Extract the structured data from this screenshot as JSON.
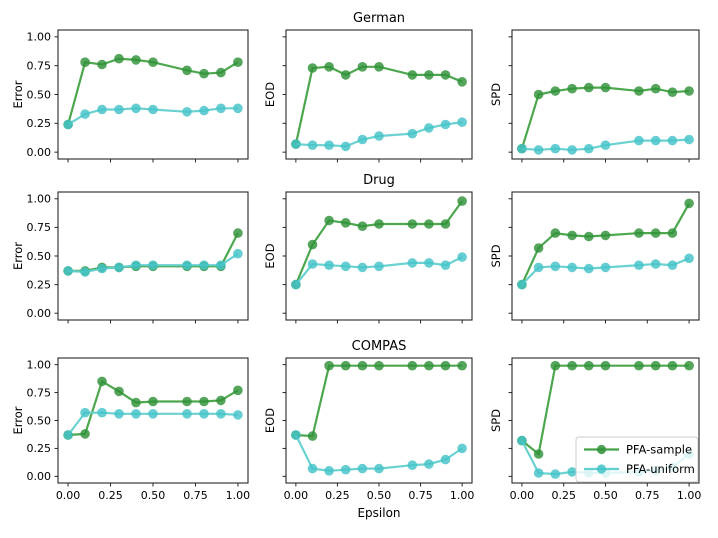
{
  "figure": {
    "xlabel": "Epsilon",
    "row_titles": [
      "German",
      "Drug",
      "COMPAS"
    ],
    "col_ylabels": [
      "Error",
      "EOD",
      "SPD"
    ],
    "x_tick_labels": [
      "0.00",
      "0.25",
      "0.50",
      "0.75",
      "1.00"
    ],
    "y_tick_labels": [
      "0.00",
      "0.25",
      "0.50",
      "0.75",
      "1.00"
    ],
    "tick_values": [
      0,
      0.25,
      0.5,
      0.75,
      1.0
    ],
    "xlim": [
      -0.05,
      1.05
    ],
    "ylim": [
      -0.05,
      1.05
    ],
    "colors": {
      "sample_line": "#42a245",
      "sample_marker": "#2f9138",
      "uniform_line": "#62cfcf",
      "uniform_marker": "#44c3c8",
      "spine": "#262626",
      "legend_border": "#cccccc"
    },
    "legend": {
      "items": [
        {
          "label": "PFA-sample",
          "series": "PFA-sample"
        },
        {
          "label": "PFA-uniform",
          "series": "PFA-uniform"
        }
      ],
      "position": "lower right of COMPAS-SPD subplot"
    }
  },
  "chart_data": [
    {
      "id": "german-error",
      "type": "line",
      "dataset": "German",
      "metric": "Error",
      "title": "",
      "ylabel": "Error",
      "x": [
        0.0,
        0.1,
        0.2,
        0.3,
        0.4,
        0.5,
        0.7,
        0.8,
        0.9,
        1.0
      ],
      "series": [
        {
          "name": "PFA-sample",
          "values": [
            0.24,
            0.78,
            0.76,
            0.81,
            0.8,
            0.78,
            0.71,
            0.68,
            0.69,
            0.78
          ]
        },
        {
          "name": "PFA-uniform",
          "values": [
            0.24,
            0.33,
            0.37,
            0.37,
            0.38,
            0.37,
            0.35,
            0.36,
            0.38,
            0.38
          ]
        }
      ]
    },
    {
      "id": "german-eod",
      "type": "line",
      "dataset": "German",
      "metric": "EOD",
      "title": "German",
      "ylabel": "EOD",
      "x": [
        0.0,
        0.1,
        0.2,
        0.3,
        0.4,
        0.5,
        0.7,
        0.8,
        0.9,
        1.0
      ],
      "series": [
        {
          "name": "PFA-sample",
          "values": [
            0.07,
            0.73,
            0.74,
            0.67,
            0.74,
            0.74,
            0.67,
            0.67,
            0.67,
            0.61
          ]
        },
        {
          "name": "PFA-uniform",
          "values": [
            0.07,
            0.06,
            0.06,
            0.05,
            0.11,
            0.14,
            0.16,
            0.21,
            0.24,
            0.26
          ]
        }
      ]
    },
    {
      "id": "german-spd",
      "type": "line",
      "dataset": "German",
      "metric": "SPD",
      "title": "",
      "ylabel": "SPD",
      "x": [
        0.0,
        0.1,
        0.2,
        0.3,
        0.4,
        0.5,
        0.7,
        0.8,
        0.9,
        1.0
      ],
      "series": [
        {
          "name": "PFA-sample",
          "values": [
            0.03,
            0.5,
            0.53,
            0.55,
            0.56,
            0.56,
            0.53,
            0.55,
            0.52,
            0.53
          ]
        },
        {
          "name": "PFA-uniform",
          "values": [
            0.03,
            0.02,
            0.03,
            0.02,
            0.03,
            0.06,
            0.1,
            0.1,
            0.1,
            0.11
          ]
        }
      ]
    },
    {
      "id": "drug-error",
      "type": "line",
      "dataset": "Drug",
      "metric": "Error",
      "title": "",
      "ylabel": "Error",
      "x": [
        0.0,
        0.1,
        0.2,
        0.3,
        0.4,
        0.5,
        0.7,
        0.8,
        0.9,
        1.0
      ],
      "series": [
        {
          "name": "PFA-sample",
          "values": [
            0.37,
            0.37,
            0.4,
            0.4,
            0.41,
            0.41,
            0.41,
            0.41,
            0.41,
            0.7
          ]
        },
        {
          "name": "PFA-uniform",
          "values": [
            0.37,
            0.36,
            0.39,
            0.4,
            0.42,
            0.42,
            0.42,
            0.42,
            0.42,
            0.52
          ]
        }
      ]
    },
    {
      "id": "drug-eod",
      "type": "line",
      "dataset": "Drug",
      "metric": "EOD",
      "title": "Drug",
      "ylabel": "EOD",
      "x": [
        0.0,
        0.1,
        0.2,
        0.3,
        0.4,
        0.5,
        0.7,
        0.8,
        0.9,
        1.0
      ],
      "series": [
        {
          "name": "PFA-sample",
          "values": [
            0.25,
            0.6,
            0.81,
            0.79,
            0.76,
            0.78,
            0.78,
            0.78,
            0.78,
            0.98
          ]
        },
        {
          "name": "PFA-uniform",
          "values": [
            0.25,
            0.43,
            0.42,
            0.41,
            0.4,
            0.41,
            0.44,
            0.44,
            0.42,
            0.49
          ]
        }
      ]
    },
    {
      "id": "drug-spd",
      "type": "line",
      "dataset": "Drug",
      "metric": "SPD",
      "title": "",
      "ylabel": "SPD",
      "x": [
        0.0,
        0.1,
        0.2,
        0.3,
        0.4,
        0.5,
        0.7,
        0.8,
        0.9,
        1.0
      ],
      "series": [
        {
          "name": "PFA-sample",
          "values": [
            0.25,
            0.57,
            0.7,
            0.68,
            0.67,
            0.68,
            0.7,
            0.7,
            0.7,
            0.96
          ]
        },
        {
          "name": "PFA-uniform",
          "values": [
            0.25,
            0.4,
            0.41,
            0.4,
            0.39,
            0.4,
            0.42,
            0.43,
            0.42,
            0.48
          ]
        }
      ]
    },
    {
      "id": "compas-error",
      "type": "line",
      "dataset": "COMPAS",
      "metric": "Error",
      "title": "",
      "ylabel": "Error",
      "x": [
        0.0,
        0.1,
        0.2,
        0.3,
        0.4,
        0.5,
        0.7,
        0.8,
        0.9,
        1.0
      ],
      "series": [
        {
          "name": "PFA-sample",
          "values": [
            0.37,
            0.38,
            0.85,
            0.76,
            0.66,
            0.67,
            0.67,
            0.67,
            0.68,
            0.77
          ]
        },
        {
          "name": "PFA-uniform",
          "values": [
            0.37,
            0.57,
            0.57,
            0.56,
            0.56,
            0.56,
            0.56,
            0.56,
            0.56,
            0.55
          ]
        }
      ]
    },
    {
      "id": "compas-eod",
      "type": "line",
      "dataset": "COMPAS",
      "metric": "EOD",
      "title": "COMPAS",
      "ylabel": "EOD",
      "x": [
        0.0,
        0.1,
        0.2,
        0.3,
        0.4,
        0.5,
        0.7,
        0.8,
        0.9,
        1.0
      ],
      "series": [
        {
          "name": "PFA-sample",
          "values": [
            0.37,
            0.36,
            0.99,
            0.99,
            0.99,
            0.99,
            0.99,
            0.99,
            0.99,
            0.99
          ]
        },
        {
          "name": "PFA-uniform",
          "values": [
            0.37,
            0.07,
            0.05,
            0.06,
            0.07,
            0.07,
            0.1,
            0.11,
            0.15,
            0.25
          ]
        }
      ]
    },
    {
      "id": "compas-spd",
      "type": "line",
      "dataset": "COMPAS",
      "metric": "SPD",
      "title": "",
      "ylabel": "SPD",
      "x": [
        0.0,
        0.1,
        0.2,
        0.3,
        0.4,
        0.5,
        0.7,
        0.8,
        0.9,
        1.0
      ],
      "series": [
        {
          "name": "PFA-sample",
          "values": [
            0.32,
            0.2,
            0.99,
            0.99,
            0.99,
            0.99,
            0.99,
            0.99,
            0.99,
            0.99
          ]
        },
        {
          "name": "PFA-uniform",
          "values": [
            0.32,
            0.03,
            0.02,
            0.04,
            0.03,
            0.03,
            0.04,
            0.05,
            0.08,
            0.2
          ]
        }
      ]
    }
  ]
}
